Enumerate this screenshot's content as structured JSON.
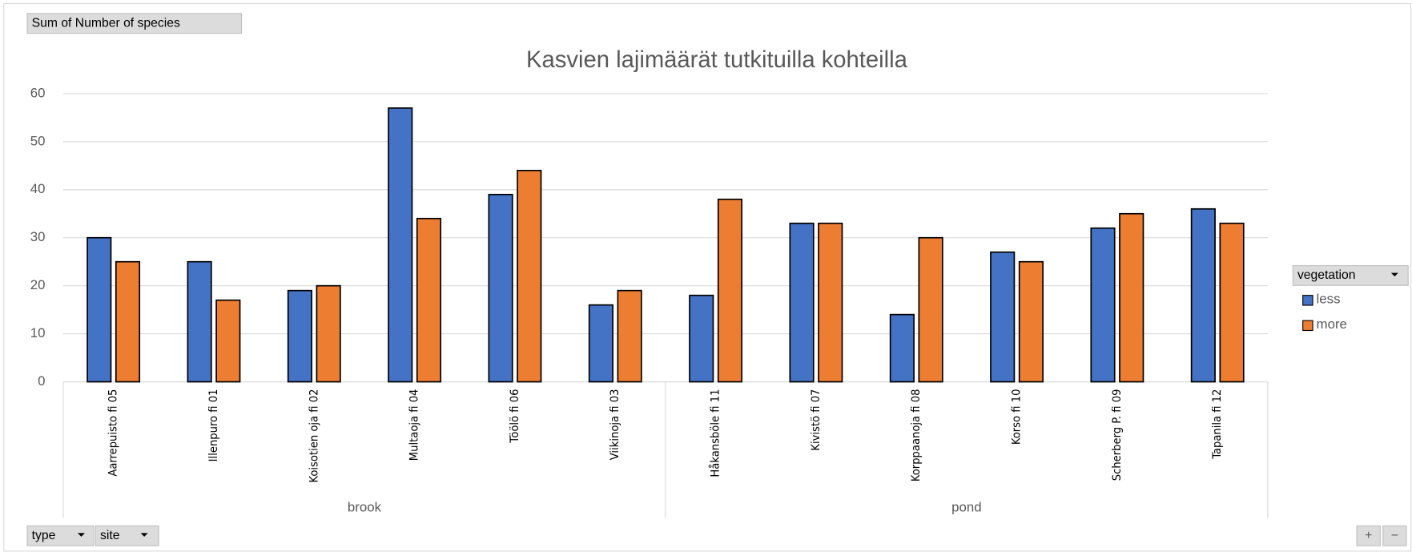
{
  "pivot": {
    "value_field": "Sum of Number of species",
    "axis_fields": [
      "type",
      "site"
    ],
    "legend_field": "vegetation",
    "zoom_buttons": [
      "+",
      "−"
    ]
  },
  "chart_data": {
    "type": "bar",
    "title": "Kasvien lajimäärät tutkituilla kohteilla",
    "groups": [
      {
        "label": "brook",
        "categories": [
          "Aarrepuisto fi 05",
          "Illenpuro fi 01",
          "Koisotien oja fi 02",
          "Multaoja fi 04",
          "Töölö fi 06",
          "Viikinoja fi 03"
        ]
      },
      {
        "label": "pond",
        "categories": [
          "Håkansböle fi 11",
          "Kivistö fi 07",
          "Korppaanoja fi 08",
          "Korso fi 10",
          "Scherberg P. fi 09",
          "Tapanila fi 12"
        ]
      }
    ],
    "series": [
      {
        "name": "less",
        "color": "#4472c4",
        "values": [
          30,
          25,
          19,
          57,
          39,
          16,
          18,
          33,
          14,
          27,
          32,
          36
        ]
      },
      {
        "name": "more",
        "color": "#ed7d31",
        "values": [
          25,
          17,
          20,
          34,
          44,
          19,
          38,
          33,
          30,
          25,
          35,
          33
        ]
      }
    ],
    "ylim": [
      0,
      60
    ],
    "yticks": [
      0,
      10,
      20,
      30,
      40,
      50,
      60
    ],
    "grid": true,
    "legend": "right"
  }
}
